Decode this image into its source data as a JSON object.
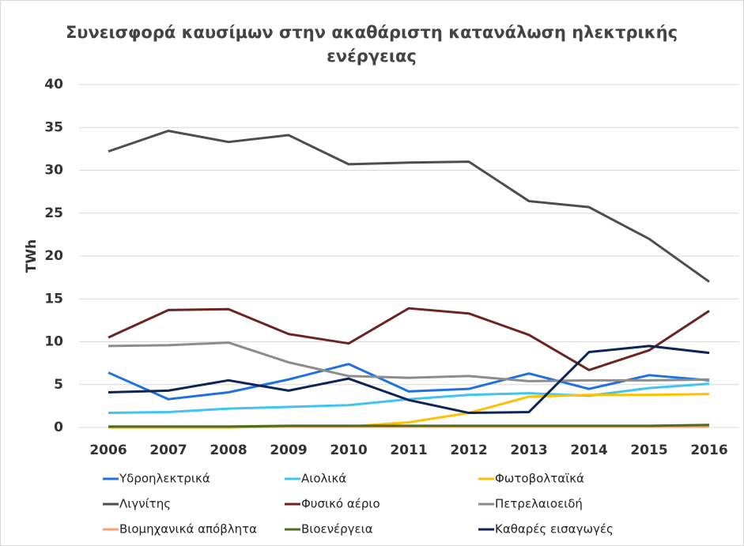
{
  "chart_data": {
    "type": "line",
    "title": [
      "Συνεισφορά καυσίμων στην ακαθάριστη κατανάλωση ηλεκτρικής",
      "ενέργειας"
    ],
    "y_label": "TWh",
    "categories": [
      "2006",
      "2007",
      "2008",
      "2009",
      "2010",
      "2011",
      "2012",
      "2013",
      "2014",
      "2015",
      "2016"
    ],
    "ylim": [
      0,
      40
    ],
    "yticks": [
      0,
      5,
      10,
      15,
      20,
      25,
      30,
      35,
      40
    ],
    "grid": true,
    "legend": "bottom",
    "series": [
      {
        "name": "Υδροηλεκτρικά",
        "color": "#1f6fe5",
        "values": [
          6.4,
          3.3,
          4.1,
          5.6,
          7.4,
          4.2,
          4.5,
          6.3,
          4.5,
          6.1,
          5.5
        ]
      },
      {
        "name": "Αιολικά",
        "color": "#40c4f2",
        "values": [
          1.7,
          1.8,
          2.2,
          2.4,
          2.6,
          3.3,
          3.8,
          4.0,
          3.7,
          4.6,
          5.1
        ]
      },
      {
        "name": "Φωτοβολταϊκά",
        "color": "#ffc000",
        "values": [
          0,
          0,
          0,
          0.1,
          0.1,
          0.6,
          1.7,
          3.6,
          3.8,
          3.8,
          3.9
        ]
      },
      {
        "name": "Λιγνίτης",
        "color": "#4d4d4d",
        "values": [
          32.2,
          34.6,
          33.3,
          34.1,
          30.7,
          30.9,
          31.0,
          26.4,
          25.7,
          22.0,
          17.0
        ]
      },
      {
        "name": "Φυσικό αέριο",
        "color": "#6b2424",
        "values": [
          10.5,
          13.7,
          13.8,
          10.9,
          9.8,
          13.9,
          13.3,
          10.8,
          6.7,
          9.0,
          13.6
        ]
      },
      {
        "name": "Πετρελαιοειδή",
        "color": "#8c8c8c",
        "values": [
          9.5,
          9.6,
          9.9,
          7.6,
          6.0,
          5.8,
          6.0,
          5.4,
          5.5,
          5.5,
          5.6
        ]
      },
      {
        "name": "Βιομηχανικά απόβλητα",
        "color": "#f4a070",
        "values": [
          0.1,
          0.1,
          0.1,
          0.1,
          0.1,
          0.1,
          0.1,
          0.1,
          0.1,
          0.1,
          0.1
        ]
      },
      {
        "name": "Βιοενέργεια",
        "color": "#4e6b1e",
        "values": [
          0.1,
          0.1,
          0.1,
          0.2,
          0.2,
          0.2,
          0.2,
          0.2,
          0.2,
          0.2,
          0.3
        ]
      },
      {
        "name": "Καθαρές εισαγωγές",
        "color": "#0d2456",
        "values": [
          4.1,
          4.3,
          5.5,
          4.3,
          5.7,
          3.2,
          1.7,
          1.8,
          8.8,
          9.5,
          8.7
        ]
      }
    ]
  }
}
